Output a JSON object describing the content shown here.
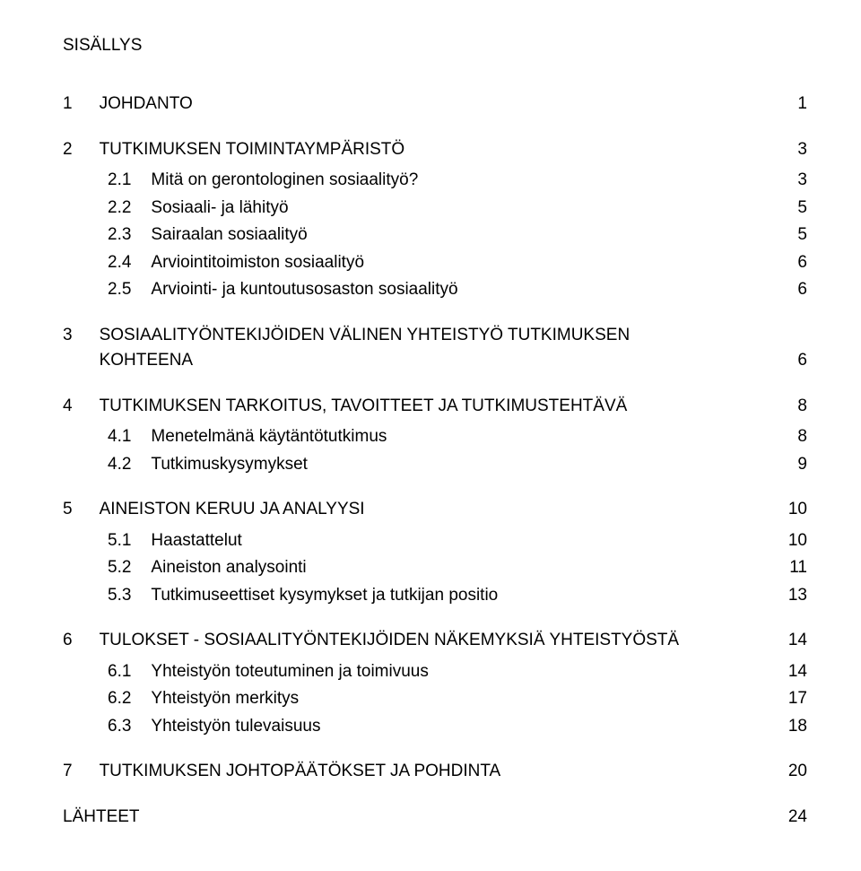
{
  "title": "SISÄLLYS",
  "colors": {
    "background": "#ffffff",
    "text": "#000000"
  },
  "typography": {
    "font_family": "Arial, Helvetica, sans-serif",
    "font_size_pt": 14
  },
  "sections": [
    {
      "num": "1",
      "title": "JOHDANTO",
      "page": "1",
      "subs": []
    },
    {
      "num": "2",
      "title": "TUTKIMUKSEN TOIMINTAYMPÄRISTÖ",
      "page": "3",
      "subs": [
        {
          "num": "2.1",
          "title": "Mitä on gerontologinen sosiaalityö?",
          "page": "3"
        },
        {
          "num": "2.2",
          "title": "Sosiaali- ja lähityö",
          "page": "5"
        },
        {
          "num": "2.3",
          "title": "Sairaalan sosiaalityö",
          "page": "5"
        },
        {
          "num": "2.4",
          "title": "Arviointitoimiston sosiaalityö",
          "page": "6"
        },
        {
          "num": "2.5",
          "title": "Arviointi- ja kuntoutusosaston sosiaalityö",
          "page": "6"
        }
      ]
    },
    {
      "num": "3",
      "title": "SOSIAALITYÖNTEKIJÖIDEN VÄLINEN YHTEISTYÖ TUTKIMUKSEN KOHTEENA",
      "page": "6",
      "subs": [],
      "wrap": true
    },
    {
      "num": "4",
      "title": "TUTKIMUKSEN TARKOITUS, TAVOITTEET JA TUTKIMUSTEHTÄVÄ",
      "page": "8",
      "subs": [
        {
          "num": "4.1",
          "title": "Menetelmänä käytäntötutkimus",
          "page": "8"
        },
        {
          "num": "4.2",
          "title": "Tutkimuskysymykset",
          "page": "9"
        }
      ]
    },
    {
      "num": "5",
      "title": "AINEISTON KERUU JA ANALYYSI",
      "page": "10",
      "subs": [
        {
          "num": "5.1",
          "title": "Haastattelut",
          "page": "10"
        },
        {
          "num": "5.2",
          "title": "Aineiston analysointi",
          "page": "11"
        },
        {
          "num": "5.3",
          "title": "Tutkimuseettiset kysymykset ja tutkijan positio",
          "page": "13"
        }
      ]
    },
    {
      "num": "6",
      "title": "TULOKSET - SOSIAALITYÖNTEKIJÖIDEN NÄKEMYKSIÄ YHTEISTYÖSTÄ",
      "page": "14",
      "subs": [
        {
          "num": "6.1",
          "title": "Yhteistyön toteutuminen ja toimivuus",
          "page": "14"
        },
        {
          "num": "6.2",
          "title": "Yhteistyön merkitys",
          "page": "17"
        },
        {
          "num": "6.3",
          "title": "Yhteistyön tulevaisuus",
          "page": "18"
        }
      ]
    },
    {
      "num": "7",
      "title": "TUTKIMUKSEN JOHTOPÄÄTÖKSET JA POHDINTA",
      "page": "20",
      "subs": []
    }
  ],
  "appendix": {
    "title": "LÄHTEET",
    "page": "24"
  }
}
